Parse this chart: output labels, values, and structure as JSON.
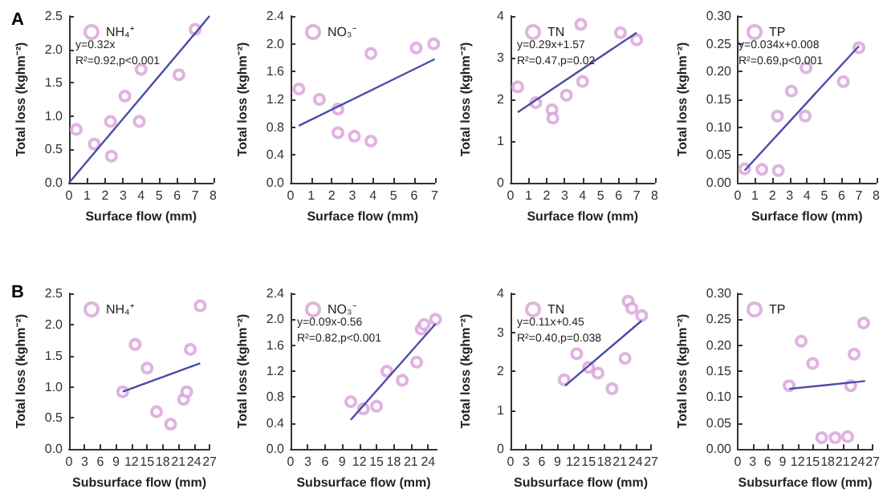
{
  "chart_data": [
    {
      "type": "scatter",
      "title": "A",
      "xlabel": "Surface flow (mm)",
      "ylabel": "Total loss (kghm⁻²)",
      "xlim": [
        0,
        8
      ],
      "xticks": [
        0,
        1,
        2,
        3,
        4,
        5,
        6,
        7,
        8
      ],
      "ylim": [
        0,
        2.5
      ],
      "yticks": [
        {
          "value": 0,
          "label": "0.0"
        },
        0.5,
        {
          "value": 1,
          "label": "1.0"
        },
        1.5,
        {
          "value": 2,
          "label": "2.0"
        },
        2.5
      ],
      "legend": "top left",
      "annotations": [
        "y=0.32x",
        "R²=0.92,p<0.001"
      ],
      "series": [
        {
          "name": "NH₄⁺",
          "marker": "circle",
          "color": "#d9a0d9",
          "x": [
            0.4,
            1.4,
            2.3,
            2.35,
            3.1,
            3.9,
            4.0,
            6.1,
            7.0
          ],
          "values": [
            0.8,
            0.58,
            0.92,
            0.4,
            1.3,
            0.92,
            1.7,
            1.62,
            2.3
          ]
        },
        {
          "type": "line",
          "color": "#4b4ba8",
          "x": [
            0,
            7.8
          ],
          "values": [
            0,
            2.5
          ]
        }
      ]
    },
    {
      "type": "scatter",
      "xlabel": "Surface flow (mm)",
      "ylabel": "Total loss (kghm⁻²)",
      "xlim": [
        0,
        7
      ],
      "xticks": [
        0,
        1,
        2,
        3,
        4,
        5,
        6,
        7
      ],
      "ylim": [
        0,
        2.4
      ],
      "yticks": [
        {
          "value": 0,
          "label": "0.0"
        },
        0.4,
        0.8,
        1.2,
        1.6,
        {
          "value": 2,
          "label": "2.0"
        },
        2.4
      ],
      "legend": "top left",
      "series": [
        {
          "name": "NO₃⁻",
          "marker": "circle",
          "color": "#d9a0d9",
          "x": [
            0.4,
            1.4,
            2.3,
            2.3,
            3.1,
            3.9,
            3.9,
            6.1,
            6.95
          ],
          "values": [
            1.35,
            1.2,
            1.06,
            0.72,
            0.67,
            1.86,
            0.6,
            1.94,
            2.0
          ]
        },
        {
          "type": "line",
          "color": "#4b4ba8",
          "x": [
            0.4,
            7
          ],
          "values": [
            0.82,
            1.78
          ]
        }
      ]
    },
    {
      "type": "scatter",
      "xlabel": "Surface flow (mm)",
      "ylabel": "Total loss (kghm⁻²)",
      "xlim": [
        0,
        8
      ],
      "xticks": [
        0,
        1,
        2,
        3,
        4,
        5,
        6,
        7,
        8
      ],
      "ylim": [
        0,
        4
      ],
      "yticks": [
        0,
        1,
        2,
        3,
        4
      ],
      "legend": "top left",
      "annotations": [
        "y=0.29x+1.57",
        "R²=0.47,p=0.02"
      ],
      "series": [
        {
          "name": "TN",
          "marker": "circle",
          "color": "#d9a0d9",
          "x": [
            0.4,
            1.4,
            2.3,
            2.35,
            3.1,
            3.9,
            4.0,
            6.1,
            7.0
          ],
          "values": [
            2.3,
            1.92,
            1.75,
            1.55,
            2.1,
            3.8,
            2.43,
            3.6,
            3.43
          ]
        },
        {
          "type": "line",
          "color": "#4b4ba8",
          "x": [
            0.4,
            7
          ],
          "values": [
            1.69,
            3.6
          ]
        }
      ]
    },
    {
      "type": "scatter",
      "xlabel": "Surface flow (mm)",
      "ylabel": "Total loss (kghm⁻²)",
      "xlim": [
        0,
        8
      ],
      "xticks": [
        0,
        1,
        2,
        3,
        4,
        5,
        6,
        7,
        8
      ],
      "ylim": [
        0,
        0.3
      ],
      "yticks": [
        {
          "value": 0,
          "label": "0.00"
        },
        0.05,
        {
          "value": 0.1,
          "label": "0.10"
        },
        0.15,
        {
          "value": 0.2,
          "label": "0.20"
        },
        0.25,
        {
          "value": 0.3,
          "label": "0.30"
        }
      ],
      "legend": "top left",
      "annotations": [
        "y=0.034x+0.008",
        "R²=0.69,p<0.001"
      ],
      "series": [
        {
          "name": "TP",
          "marker": "circle",
          "color": "#d9a0d9",
          "x": [
            0.4,
            1.4,
            2.3,
            2.35,
            3.1,
            3.9,
            3.95,
            6.1,
            7.0
          ],
          "values": [
            0.025,
            0.024,
            0.12,
            0.022,
            0.165,
            0.12,
            0.207,
            0.182,
            0.243
          ]
        },
        {
          "type": "line",
          "color": "#4b4ba8",
          "x": [
            0.4,
            7
          ],
          "values": [
            0.022,
            0.246
          ]
        }
      ]
    },
    {
      "type": "scatter",
      "title": "B",
      "xlabel": "Subsurface flow (mm)",
      "ylabel": "Total loss (kghm⁻²)",
      "xlim": [
        0,
        27
      ],
      "xticks": [
        0,
        3,
        6,
        9,
        12,
        15,
        18,
        21,
        24,
        27
      ],
      "ylim": [
        0,
        2.5
      ],
      "yticks": [
        {
          "value": 0,
          "label": "0.0"
        },
        0.5,
        {
          "value": 1,
          "label": "1.0"
        },
        1.5,
        {
          "value": 2,
          "label": "2.0"
        },
        2.5
      ],
      "legend": "top left",
      "series": [
        {
          "name": "NH₄⁺",
          "marker": "circle",
          "color": "#d9a0d9",
          "x": [
            10.3,
            12.7,
            15,
            16.8,
            19.5,
            22,
            22.6,
            23.3,
            25.2
          ],
          "values": [
            0.92,
            1.68,
            1.3,
            0.6,
            0.4,
            0.8,
            0.92,
            1.6,
            2.3
          ]
        },
        {
          "type": "line",
          "color": "#4b4ba8",
          "x": [
            10.3,
            25.2
          ],
          "values": [
            0.92,
            1.38
          ]
        }
      ]
    },
    {
      "type": "scatter",
      "xlabel": "Subsurface flow (mm)",
      "ylabel": "Total loss (kghm⁻²)",
      "xlim": [
        0,
        25.5
      ],
      "xticks": [
        0,
        3,
        6,
        9,
        12,
        15,
        18,
        21,
        24
      ],
      "ylim": [
        0,
        2.4
      ],
      "yticks": [
        {
          "value": 0,
          "label": "0.0"
        },
        0.4,
        0.8,
        1.2,
        1.6,
        {
          "value": 2,
          "label": "2.0"
        },
        2.4
      ],
      "legend": "top left",
      "annotations": [
        "y=0.09x-0.56",
        "R²=0.82,p<0.001"
      ],
      "series": [
        {
          "name": "NO₃⁻",
          "marker": "circle",
          "color": "#d9a0d9",
          "x": [
            10.5,
            12.7,
            15,
            16.8,
            19.5,
            22,
            22.8,
            23.3,
            25.3
          ],
          "values": [
            0.73,
            0.62,
            0.66,
            1.2,
            1.06,
            1.34,
            1.85,
            1.92,
            2.0
          ]
        },
        {
          "type": "line",
          "color": "#4b4ba8",
          "x": [
            10.5,
            25.3
          ],
          "values": [
            0.45,
            1.93
          ]
        }
      ]
    },
    {
      "type": "scatter",
      "xlabel": "Subsurface flow (mm)",
      "ylabel": "Total loss (kghm⁻²)",
      "xlim": [
        0,
        27
      ],
      "xticks": [
        0,
        3,
        6,
        9,
        12,
        15,
        18,
        21,
        24,
        27
      ],
      "ylim": [
        0,
        4
      ],
      "yticks": [
        0,
        1,
        2,
        3,
        4
      ],
      "legend": "top left",
      "annotations": [
        "y=0.11x+0.45",
        "R²=0.40,p=0.038"
      ],
      "series": [
        {
          "name": "TN",
          "marker": "circle",
          "color": "#d9a0d9",
          "x": [
            10.3,
            12.7,
            15,
            16.8,
            19.5,
            22,
            22.6,
            23.3,
            25.2
          ],
          "values": [
            1.78,
            2.45,
            2.1,
            1.95,
            1.55,
            2.33,
            3.8,
            3.62,
            3.43
          ]
        },
        {
          "type": "line",
          "color": "#4b4ba8",
          "x": [
            10.5,
            25.2
          ],
          "values": [
            1.63,
            3.3
          ]
        }
      ]
    },
    {
      "type": "scatter",
      "xlabel": "Subsurface flow (mm)",
      "ylabel": "Total loss (kghm⁻²)",
      "xlim": [
        0,
        27
      ],
      "xticks": [
        0,
        3,
        6,
        9,
        12,
        15,
        18,
        21,
        24,
        27
      ],
      "ylim": [
        0,
        0.3
      ],
      "yticks": [
        {
          "value": 0,
          "label": "0.00"
        },
        0.05,
        {
          "value": 0.1,
          "label": "0.10"
        },
        0.15,
        {
          "value": 0.2,
          "label": "0.20"
        },
        0.25,
        {
          "value": 0.3,
          "label": "0.30"
        }
      ],
      "legend": "top left",
      "series": [
        {
          "name": "TP",
          "marker": "circle",
          "color": "#d9a0d9",
          "x": [
            10.3,
            12.7,
            15,
            16.8,
            19.5,
            22,
            22.6,
            23.3,
            25.2
          ],
          "values": [
            0.122,
            0.208,
            0.165,
            0.022,
            0.022,
            0.024,
            0.122,
            0.183,
            0.243
          ]
        },
        {
          "type": "line",
          "color": "#4b4ba8",
          "x": [
            10.3,
            25.5
          ],
          "values": [
            0.116,
            0.131
          ]
        }
      ]
    }
  ]
}
